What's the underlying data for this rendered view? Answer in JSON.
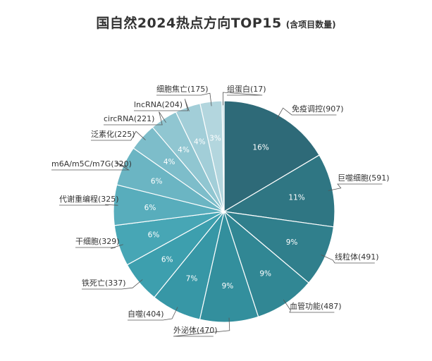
{
  "chart_data": {
    "type": "pie",
    "title": "国自然2024热点方向TOP15",
    "subtitle": "(含项目数量)",
    "slices": [
      {
        "label": "免疫调控(907)",
        "value": 907,
        "pct": "16%",
        "color": "#2e6a78"
      },
      {
        "label": "巨噬细胞(591)",
        "value": 591,
        "pct": "11%",
        "color": "#2f7683"
      },
      {
        "label": "线粒体(491)",
        "value": 491,
        "pct": "9%",
        "color": "#307f8c"
      },
      {
        "label": "血管功能(487)",
        "value": 487,
        "pct": "9%",
        "color": "#318794"
      },
      {
        "label": "外泌体(470)",
        "value": 470,
        "pct": "9%",
        "color": "#338f9d"
      },
      {
        "label": "自噬(404)",
        "value": 404,
        "pct": "7%",
        "color": "#3797a6"
      },
      {
        "label": "铁死亡(337)",
        "value": 337,
        "pct": "6%",
        "color": "#3d9fae"
      },
      {
        "label": "干细胞(329)",
        "value": 329,
        "pct": "6%",
        "color": "#47a6b5"
      },
      {
        "label": "代谢重编程(325)",
        "value": 325,
        "pct": "6%",
        "color": "#58adbc"
      },
      {
        "label": "m6A/m5C/m7G(320)",
        "value": 320,
        "pct": "6%",
        "color": "#6bb5c3"
      },
      {
        "label": "泛素化(225)",
        "value": 225,
        "pct": "4%",
        "color": "#7dbdca"
      },
      {
        "label": "circRNA(221)",
        "value": 221,
        "pct": "4%",
        "color": "#90c6d1"
      },
      {
        "label": "lncRNA(204)",
        "value": 204,
        "pct": "4%",
        "color": "#a2ced8"
      },
      {
        "label": "细胞焦亡(175)",
        "value": 175,
        "pct": "3%",
        "color": "#b3d6de"
      },
      {
        "label": "组蛋白(17)",
        "value": 17,
        "pct": "",
        "color": "#c5e0e6"
      }
    ]
  }
}
